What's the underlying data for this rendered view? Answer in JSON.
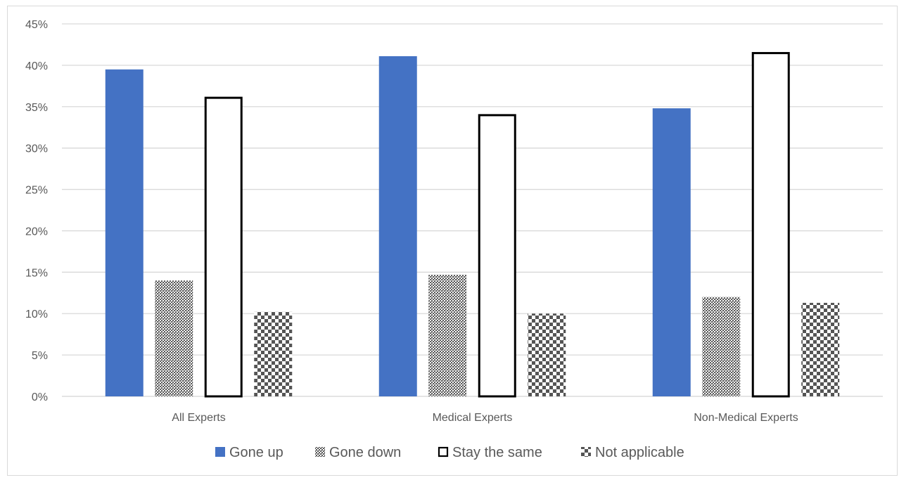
{
  "chart_data": {
    "type": "bar",
    "title": "",
    "xlabel": "",
    "ylabel": "",
    "ylim": [
      0,
      45
    ],
    "yticks": [
      "0%",
      "5%",
      "10%",
      "15%",
      "20%",
      "25%",
      "30%",
      "35%",
      "40%",
      "45%"
    ],
    "y_tick_values": [
      0,
      5,
      10,
      15,
      20,
      25,
      30,
      35,
      40,
      45
    ],
    "grid": true,
    "legend_position": "bottom",
    "categories": [
      "All Experts",
      "Medical Experts",
      "Non-Medical Experts"
    ],
    "series": [
      {
        "name": "Gone up",
        "values": [
          39.5,
          41.1,
          34.8
        ],
        "style": "solid",
        "color": "#4472c4"
      },
      {
        "name": "Gone down",
        "values": [
          14.0,
          14.7,
          12.0
        ],
        "style": "dense-pattern",
        "color": "#595959"
      },
      {
        "name": "Stay the same",
        "values": [
          36.2,
          34.1,
          41.6
        ],
        "style": "outline",
        "color": "#000000"
      },
      {
        "name": "Not applicable",
        "values": [
          10.2,
          10.0,
          11.3
        ],
        "style": "checker",
        "color": "#595959"
      }
    ]
  }
}
